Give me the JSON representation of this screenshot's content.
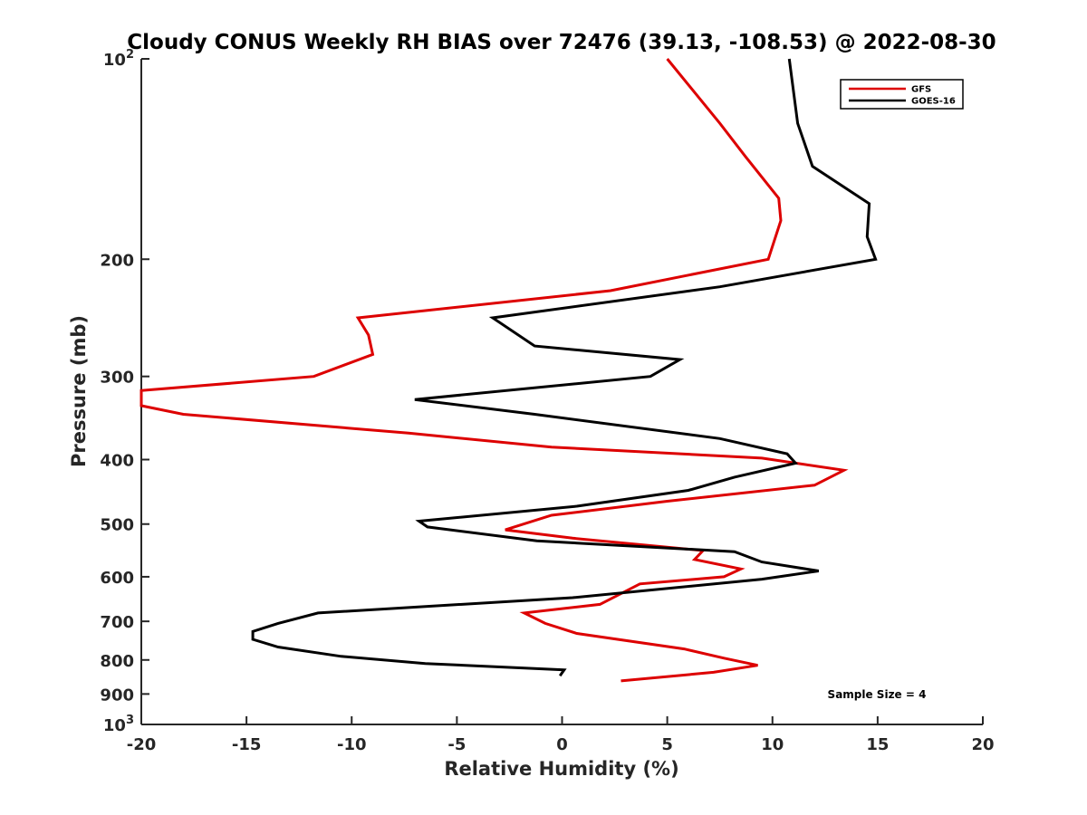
{
  "chart_data": {
    "type": "line",
    "title": "Cloudy CONUS Weekly RH BIAS over 72476 (39.13, -108.53) @ 2022-08-30",
    "xlabel": "Relative Humidity (%)",
    "ylabel": "Pressure (mb)",
    "xlim": [
      -20,
      20
    ],
    "ylim": [
      100,
      1000
    ],
    "y_scale": "log",
    "y_reversed": true,
    "x_ticks": [
      -20,
      -15,
      -10,
      -5,
      0,
      5,
      10,
      15,
      20
    ],
    "y_ticks": [
      {
        "value": 100,
        "label": "10",
        "sup": "2"
      },
      {
        "value": 200,
        "label": "200",
        "sup": ""
      },
      {
        "value": 300,
        "label": "300",
        "sup": ""
      },
      {
        "value": 400,
        "label": "400",
        "sup": ""
      },
      {
        "value": 500,
        "label": "500",
        "sup": ""
      },
      {
        "value": 600,
        "label": "600",
        "sup": ""
      },
      {
        "value": 700,
        "label": "700",
        "sup": ""
      },
      {
        "value": 800,
        "label": "800",
        "sup": ""
      },
      {
        "value": 900,
        "label": "900",
        "sup": ""
      },
      {
        "value": 1000,
        "label": "10",
        "sup": "3"
      }
    ],
    "legend_position": "top-right",
    "grid": false,
    "annotation": "Sample Size = 4",
    "series": [
      {
        "name": "GFS",
        "color": "#dd0000",
        "points": [
          [
            5.0,
            100
          ],
          [
            7.5,
            125
          ],
          [
            8.7,
            140
          ],
          [
            10.3,
            162
          ],
          [
            10.4,
            175
          ],
          [
            9.8,
            200
          ],
          [
            2.3,
            223
          ],
          [
            -9.7,
            245
          ],
          [
            -9.2,
            260
          ],
          [
            -9.0,
            278
          ],
          [
            -11.8,
            300
          ],
          [
            -20.0,
            315
          ],
          [
            -20.0,
            332
          ],
          [
            -18.0,
            342
          ],
          [
            -7.3,
            365
          ],
          [
            -0.5,
            383
          ],
          [
            9.5,
            398
          ],
          [
            13.4,
            415
          ],
          [
            12.0,
            437
          ],
          [
            5.0,
            462
          ],
          [
            -0.5,
            485
          ],
          [
            -2.7,
            510
          ],
          [
            0.5,
            525
          ],
          [
            6.7,
            548
          ],
          [
            6.3,
            565
          ],
          [
            8.5,
            584
          ],
          [
            7.7,
            600
          ],
          [
            3.7,
            615
          ],
          [
            1.8,
            660
          ],
          [
            -1.8,
            680
          ],
          [
            -0.8,
            705
          ],
          [
            0.7,
            730
          ],
          [
            5.8,
            770
          ],
          [
            7.7,
            795
          ],
          [
            9.3,
            815
          ],
          [
            7.2,
            835
          ],
          [
            2.8,
            860
          ]
        ]
      },
      {
        "name": "GOES-16",
        "color": "#000000",
        "points": [
          [
            10.8,
            100
          ],
          [
            11.2,
            125
          ],
          [
            11.9,
            145
          ],
          [
            14.6,
            165
          ],
          [
            14.5,
            185
          ],
          [
            14.9,
            200
          ],
          [
            7.5,
            220
          ],
          [
            -3.3,
            245
          ],
          [
            -1.3,
            270
          ],
          [
            5.6,
            283
          ],
          [
            4.2,
            300
          ],
          [
            -7.0,
            325
          ],
          [
            -1.3,
            342
          ],
          [
            7.5,
            372
          ],
          [
            10.7,
            392
          ],
          [
            11.1,
            405
          ],
          [
            8.2,
            425
          ],
          [
            6.0,
            445
          ],
          [
            0.7,
            470
          ],
          [
            -6.8,
            495
          ],
          [
            -6.4,
            505
          ],
          [
            -1.2,
            530
          ],
          [
            8.2,
            550
          ],
          [
            9.5,
            570
          ],
          [
            12.2,
            588
          ],
          [
            9.5,
            605
          ],
          [
            0.5,
            645
          ],
          [
            -11.6,
            680
          ],
          [
            -13.5,
            705
          ],
          [
            -14.7,
            725
          ],
          [
            -14.7,
            745
          ],
          [
            -13.5,
            765
          ],
          [
            -10.5,
            790
          ],
          [
            -6.5,
            810
          ],
          [
            0.1,
            828
          ],
          [
            -0.1,
            845
          ]
        ]
      }
    ]
  }
}
